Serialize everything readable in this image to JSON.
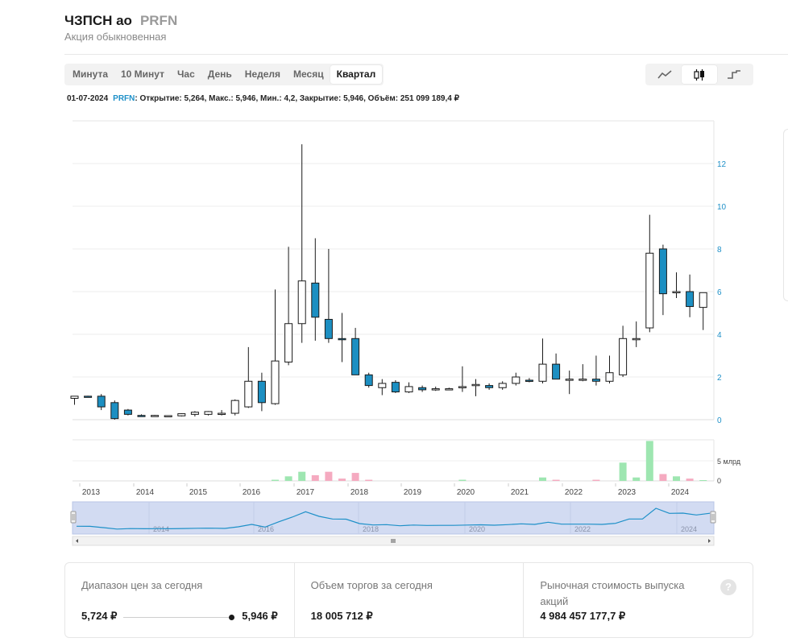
{
  "header": {
    "name": "ЧЗПСН ао",
    "ticker": "PRFN",
    "subtitle": "Акция обыкновенная"
  },
  "periods": [
    "Минута",
    "10 Минут",
    "Час",
    "День",
    "Неделя",
    "Месяц",
    "Квартал"
  ],
  "active_period": "Квартал",
  "chart_types": [
    {
      "name": "line-chart-icon",
      "active": false
    },
    {
      "name": "candlestick-chart-icon",
      "active": true
    },
    {
      "name": "step-chart-icon",
      "active": false
    }
  ],
  "info": {
    "date": "01-07-2024",
    "ticker": "PRFN",
    "text": ": Открытие: 5,264, Макс.: 5,946, Мин.: 4,2, Закрытие: 5,946, Объём: 251 099 189,4 ₽"
  },
  "colors": {
    "down": "#1c8fc2",
    "up": "#ffffff",
    "vol_up": "#9ee6b1",
    "vol_down": "#f5aac0",
    "accent": "#1e90c8",
    "navigator": "#d2dbf2"
  },
  "chart_data": {
    "type": "candlestick",
    "x_ticks": [
      "2013",
      "2014",
      "2015",
      "2016",
      "2017",
      "2018",
      "2019",
      "2020",
      "2021",
      "2022",
      "2023",
      "2024"
    ],
    "y_ticks": [
      "0",
      "2",
      "4",
      "6",
      "8",
      "10",
      "12"
    ],
    "ylim": [
      0,
      14
    ],
    "volume_label": "5 млрд",
    "volume_ticks": [
      "0"
    ],
    "navigator_ticks": [
      "2014",
      "2016",
      "2018",
      "2020",
      "2022",
      "2024"
    ],
    "candles": [
      {
        "o": 1.0,
        "h": 1.1,
        "l": 0.7,
        "c": 1.1,
        "v": 0.0
      },
      {
        "o": 1.1,
        "h": 1.12,
        "l": 1.05,
        "c": 1.08,
        "v": 0.0
      },
      {
        "o": 1.1,
        "h": 1.2,
        "l": 0.45,
        "c": 0.6,
        "v": 0.0
      },
      {
        "o": 0.8,
        "h": 0.9,
        "l": 0.0,
        "c": 0.05,
        "v": 0.0
      },
      {
        "o": 0.45,
        "h": 0.5,
        "l": 0.2,
        "c": 0.25,
        "v": 0.0
      },
      {
        "o": 0.2,
        "h": 0.25,
        "l": 0.15,
        "c": 0.18,
        "v": 0.0
      },
      {
        "o": 0.18,
        "h": 0.22,
        "l": 0.15,
        "c": 0.2,
        "v": 0.0
      },
      {
        "o": 0.18,
        "h": 0.2,
        "l": 0.16,
        "c": 0.19,
        "v": 0.0
      },
      {
        "o": 0.18,
        "h": 0.3,
        "l": 0.15,
        "c": 0.28,
        "v": 0.0
      },
      {
        "o": 0.25,
        "h": 0.4,
        "l": 0.15,
        "c": 0.35,
        "v": 0.0
      },
      {
        "o": 0.25,
        "h": 0.4,
        "l": 0.2,
        "c": 0.38,
        "v": 0.0
      },
      {
        "o": 0.25,
        "h": 0.45,
        "l": 0.2,
        "c": 0.3,
        "v": 0.0
      },
      {
        "o": 0.3,
        "h": 0.95,
        "l": 0.2,
        "c": 0.9,
        "v": 0.0
      },
      {
        "o": 0.6,
        "h": 3.4,
        "l": 0.55,
        "c": 1.8,
        "v": 0.0
      },
      {
        "o": 1.8,
        "h": 2.2,
        "l": 0.4,
        "c": 0.8,
        "v": 0.0
      },
      {
        "o": 0.75,
        "h": 6.1,
        "l": 0.7,
        "c": 2.75,
        "v": 0.1
      },
      {
        "o": 2.7,
        "h": 8.1,
        "l": 2.55,
        "c": 4.5,
        "v": 0.4
      },
      {
        "o": 4.5,
        "h": 12.9,
        "l": 3.6,
        "c": 6.5,
        "v": 0.8
      },
      {
        "o": 6.4,
        "h": 8.5,
        "l": 3.7,
        "c": 4.8,
        "v": 0.5
      },
      {
        "o": 4.7,
        "h": 8.0,
        "l": 3.6,
        "c": 3.8,
        "v": 0.8
      },
      {
        "o": 3.8,
        "h": 5.0,
        "l": 2.7,
        "c": 3.75,
        "v": 0.2
      },
      {
        "o": 3.8,
        "h": 4.3,
        "l": 2.1,
        "c": 2.1,
        "v": 0.7
      },
      {
        "o": 2.1,
        "h": 2.2,
        "l": 1.5,
        "c": 1.6,
        "v": 0.1
      },
      {
        "o": 1.5,
        "h": 1.9,
        "l": 1.15,
        "c": 1.7,
        "v": 0.0
      },
      {
        "o": 1.75,
        "h": 1.85,
        "l": 1.25,
        "c": 1.3,
        "v": 0.0
      },
      {
        "o": 1.3,
        "h": 1.75,
        "l": 1.25,
        "c": 1.55,
        "v": 0.0
      },
      {
        "o": 1.5,
        "h": 1.6,
        "l": 1.3,
        "c": 1.4,
        "v": 0.0
      },
      {
        "o": 1.42,
        "h": 1.55,
        "l": 1.35,
        "c": 1.45,
        "v": 0.0
      },
      {
        "o": 1.42,
        "h": 1.5,
        "l": 1.38,
        "c": 1.45,
        "v": 0.0
      },
      {
        "o": 1.5,
        "h": 2.5,
        "l": 1.3,
        "c": 1.55,
        "v": 0.1
      },
      {
        "o": 1.6,
        "h": 1.9,
        "l": 1.1,
        "c": 1.65,
        "v": 0.0
      },
      {
        "o": 1.6,
        "h": 1.7,
        "l": 1.4,
        "c": 1.5,
        "v": 0.0
      },
      {
        "o": 1.5,
        "h": 1.8,
        "l": 1.4,
        "c": 1.7,
        "v": 0.0
      },
      {
        "o": 1.7,
        "h": 2.2,
        "l": 1.6,
        "c": 2.0,
        "v": 0.0
      },
      {
        "o": 1.85,
        "h": 1.95,
        "l": 1.75,
        "c": 1.8,
        "v": 0.0
      },
      {
        "o": 1.8,
        "h": 3.8,
        "l": 1.7,
        "c": 2.6,
        "v": 0.3
      },
      {
        "o": 2.6,
        "h": 3.1,
        "l": 1.9,
        "c": 1.9,
        "v": 0.1
      },
      {
        "o": 1.85,
        "h": 2.3,
        "l": 1.2,
        "c": 1.9,
        "v": 0.0
      },
      {
        "o": 1.85,
        "h": 2.6,
        "l": 1.8,
        "c": 1.9,
        "v": 0.0
      },
      {
        "o": 1.9,
        "h": 3.0,
        "l": 1.6,
        "c": 1.8,
        "v": 0.1
      },
      {
        "o": 1.8,
        "h": 3.0,
        "l": 1.7,
        "c": 2.2,
        "v": 0.0
      },
      {
        "o": 2.1,
        "h": 4.4,
        "l": 2.0,
        "c": 3.8,
        "v": 1.6
      },
      {
        "o": 3.75,
        "h": 4.6,
        "l": 3.4,
        "c": 3.8,
        "v": 0.3
      },
      {
        "o": 4.3,
        "h": 9.6,
        "l": 4.1,
        "c": 7.8,
        "v": 3.5
      },
      {
        "o": 8.0,
        "h": 8.2,
        "l": 4.9,
        "c": 5.9,
        "v": 0.6
      },
      {
        "o": 6.0,
        "h": 6.9,
        "l": 5.7,
        "c": 6.0,
        "v": 0.4
      },
      {
        "o": 6.0,
        "h": 6.8,
        "l": 4.8,
        "c": 5.3,
        "v": 0.2
      },
      {
        "o": 5.26,
        "h": 5.95,
        "l": 4.2,
        "c": 5.95,
        "v": 0.05
      }
    ]
  },
  "stats": {
    "range_label": "Диапазон цен за сегодня",
    "range_min": "5,724 ₽",
    "range_max": "5,946 ₽",
    "volume_label": "Объем торгов за сегодня",
    "volume_value": "18 005 712 ₽",
    "cap_label": "Рыночная стоимость выпуска акций",
    "cap_value": "4 984 457 177,7 ₽",
    "help": "?"
  }
}
